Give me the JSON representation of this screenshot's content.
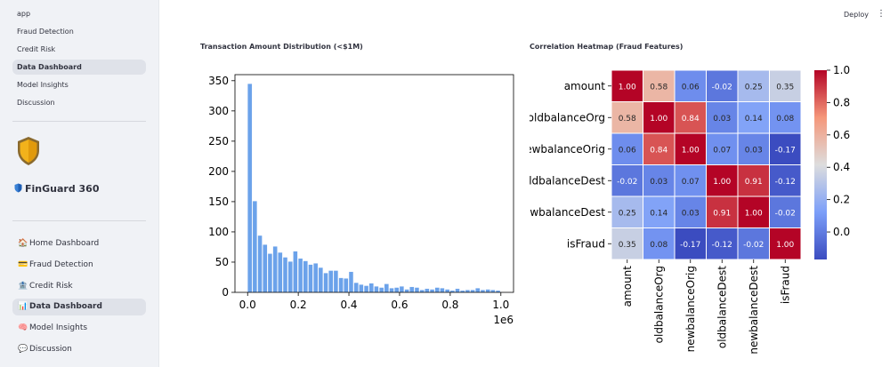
{
  "app": {
    "pages": [
      "app",
      "Fraud Detection",
      "Credit Risk",
      "Data Dashboard",
      "Model Insights",
      "Discussion"
    ],
    "active_page": "Data Dashboard"
  },
  "brand": {
    "title": "FinGuard 360"
  },
  "nav": {
    "items": [
      {
        "icon": "🏠",
        "label": "Home Dashboard"
      },
      {
        "icon": "💳",
        "label": "Fraud Detection"
      },
      {
        "icon": "🏦",
        "label": "Credit Risk"
      },
      {
        "icon": "📊",
        "label": "Data Dashboard"
      },
      {
        "icon": "🧠",
        "label": "Model Insights"
      },
      {
        "icon": "💬",
        "label": "Discussion"
      }
    ],
    "active": "Data Dashboard"
  },
  "header": {
    "deploy_label": "Deploy",
    "menu_icon": "⋮"
  },
  "chart_data": [
    {
      "type": "bar",
      "title": "Transaction Amount Distribution (<$1M)",
      "x_multiplier_label": "1e6",
      "xlim": [
        -0.05,
        1.05
      ],
      "ylim": [
        0,
        360
      ],
      "x_ticks": [
        0.0,
        0.2,
        0.4,
        0.6,
        0.8,
        1.0
      ],
      "x_tick_labels": [
        "0.0",
        "0.2",
        "0.4",
        "0.6",
        "0.8",
        "1.0"
      ],
      "y_ticks": [
        0,
        50,
        100,
        150,
        200,
        250,
        300,
        350
      ],
      "bin_start": 0.0,
      "bin_width": 0.02,
      "values": [
        345,
        151,
        94,
        79,
        64,
        76,
        66,
        58,
        51,
        68,
        56,
        52,
        46,
        48,
        41,
        32,
        36,
        36,
        24,
        23,
        34,
        16,
        13,
        11,
        15,
        10,
        8,
        14,
        7,
        8,
        10,
        5,
        9,
        8,
        4,
        6,
        5,
        8,
        7,
        5,
        3,
        6,
        3,
        4,
        4,
        7,
        4,
        5,
        4,
        3
      ],
      "bar_color": "#6ba2ea"
    },
    {
      "type": "heatmap",
      "title": "Correlation Heatmap (Fraud Features)",
      "labels": [
        "amount",
        "oldbalanceOrg",
        "newbalanceOrig",
        "oldbalanceDest",
        "newbalanceDest",
        "isFraud"
      ],
      "matrix": [
        [
          1.0,
          0.58,
          0.06,
          -0.02,
          0.25,
          0.35
        ],
        [
          0.58,
          1.0,
          0.84,
          0.03,
          0.14,
          0.08
        ],
        [
          0.06,
          0.84,
          1.0,
          0.07,
          0.03,
          -0.17
        ],
        [
          -0.02,
          0.03,
          0.07,
          1.0,
          0.91,
          -0.12
        ],
        [
          0.25,
          0.14,
          0.03,
          0.91,
          1.0,
          -0.02
        ],
        [
          0.35,
          0.08,
          -0.17,
          -0.12,
          -0.02,
          1.0
        ]
      ],
      "colormap": "coolwarm",
      "vmin": -0.17,
      "vmax": 1.0,
      "colorbar_ticks": [
        0.0,
        0.2,
        0.4,
        0.6,
        0.8,
        1.0
      ],
      "colorbar_tick_labels": [
        "0.0",
        "0.2",
        "0.4",
        "0.6",
        "0.8",
        "1.0"
      ]
    }
  ]
}
